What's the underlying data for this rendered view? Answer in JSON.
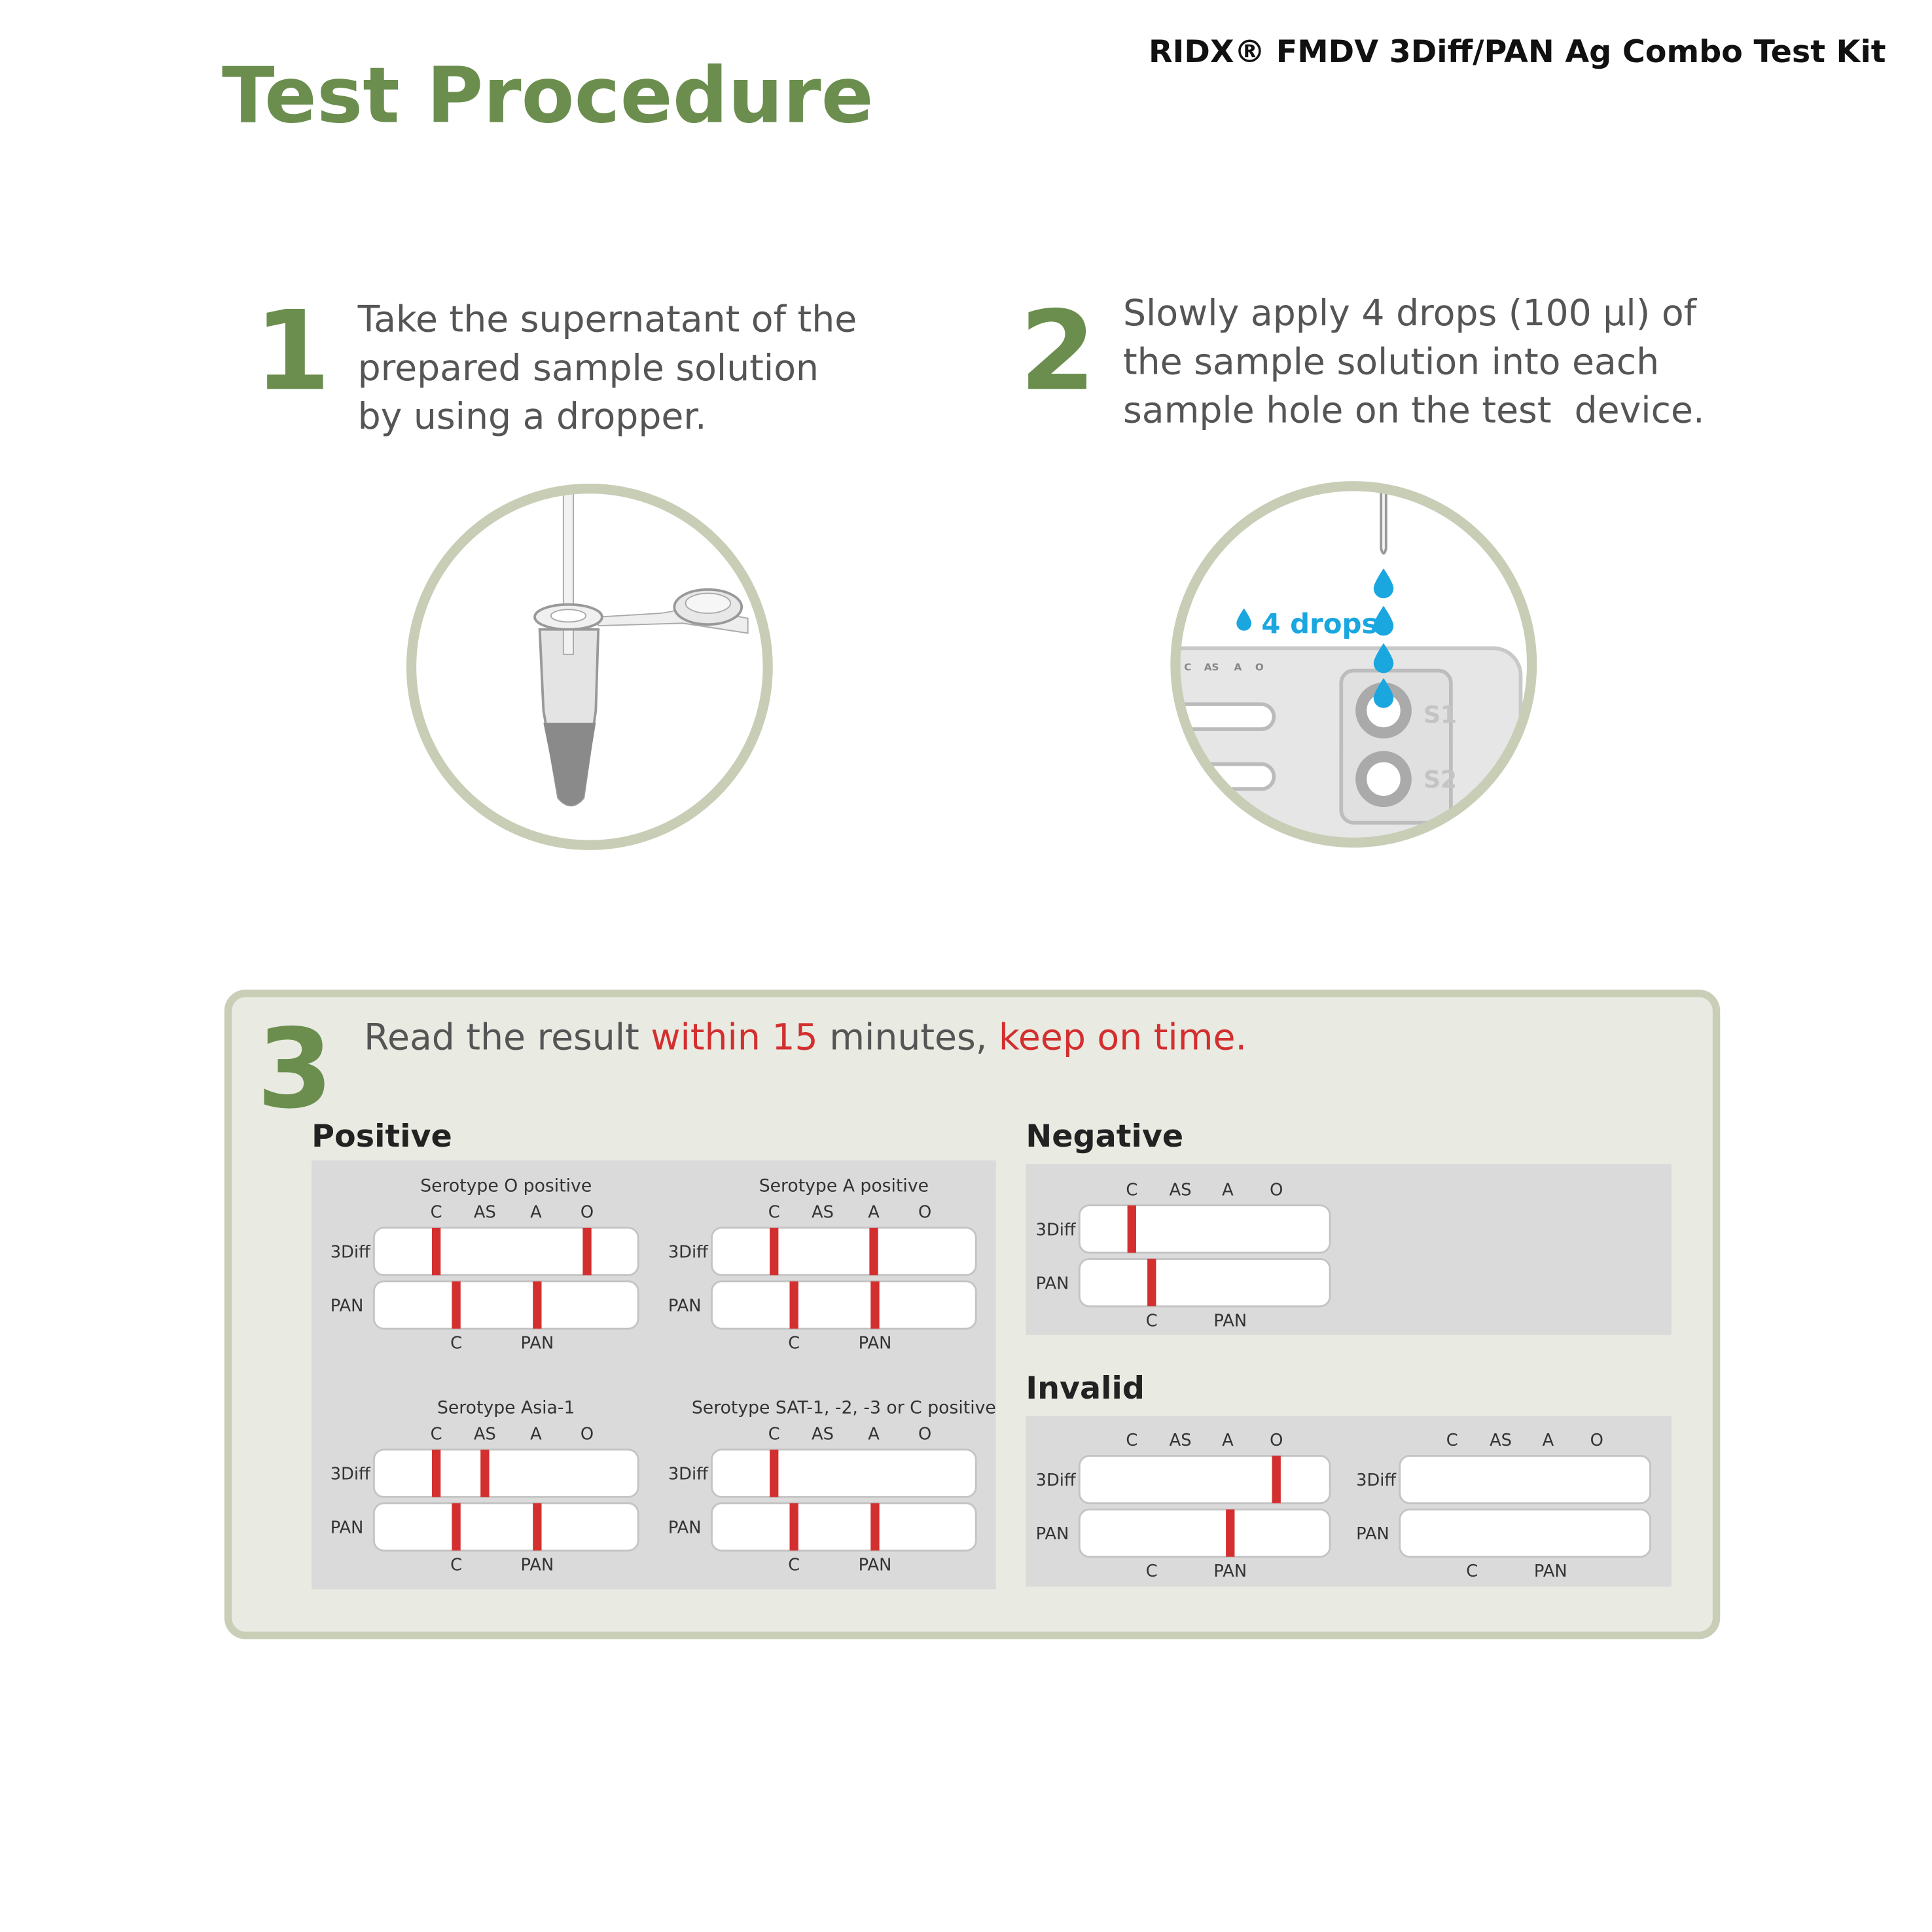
{
  "header": {
    "kit_name": "RIDX® FMDV 3Diff/PAN Ag Combo Test Kit",
    "title": "Test Procedure"
  },
  "steps": [
    {
      "number": "1",
      "text": [
        "Take the supernatant of the",
        "prepared sample solution",
        "by using a dropper."
      ]
    },
    {
      "number": "2",
      "text": [
        "Slowly apply 4 drops (100 µl) of",
        "the sample solution into each",
        "sample hole on the test  device."
      ],
      "illustration": {
        "drops_label": "4 drops",
        "holes": [
          "S1",
          "S2"
        ],
        "strip_labels": [
          "C",
          "AS",
          "A",
          "O"
        ]
      }
    }
  ],
  "step3": {
    "number": "3",
    "instruction": [
      {
        "text": "Read the result ",
        "color": "#555555"
      },
      {
        "text": "within 15",
        "color": "#d32f2f"
      },
      {
        "text": " minutes, ",
        "color": "#555555"
      },
      {
        "text": "keep on time.",
        "color": "#d32f2f"
      }
    ],
    "band_color": "#d32f2f",
    "results": [
      {
        "heading": "Positive",
        "panels": [
          {
            "title": "Serotype O positive",
            "top_labels": [
              "C",
              "AS",
              "A",
              "O"
            ],
            "rows": [
              {
                "label": "3Diff",
                "bands": [
                  "C",
                  "O"
                ]
              },
              {
                "label": "PAN",
                "bands": [
                  "C",
                  "PAN"
                ]
              }
            ],
            "bottom_labels": [
              "C",
              "PAN"
            ]
          },
          {
            "title": "Serotype A positive",
            "top_labels": [
              "C",
              "AS",
              "A",
              "O"
            ],
            "rows": [
              {
                "label": "3Diff",
                "bands": [
                  "C",
                  "A"
                ]
              },
              {
                "label": "PAN",
                "bands": [
                  "C",
                  "PAN"
                ]
              }
            ],
            "bottom_labels": [
              "C",
              "PAN"
            ]
          },
          {
            "title": "Serotype Asia-1",
            "top_labels": [
              "C",
              "AS",
              "A",
              "O"
            ],
            "rows": [
              {
                "label": "3Diff",
                "bands": [
                  "C",
                  "AS"
                ]
              },
              {
                "label": "PAN",
                "bands": [
                  "C",
                  "PAN"
                ]
              }
            ],
            "bottom_labels": [
              "C",
              "PAN"
            ]
          },
          {
            "title": "Serotype SAT-1, -2, -3 or C positive",
            "top_labels": [
              "C",
              "AS",
              "A",
              "O"
            ],
            "rows": [
              {
                "label": "3Diff",
                "bands": [
                  "C"
                ]
              },
              {
                "label": "PAN",
                "bands": [
                  "C",
                  "PAN"
                ]
              }
            ],
            "bottom_labels": [
              "C",
              "PAN"
            ]
          }
        ]
      },
      {
        "heading": "Negative",
        "panels": [
          {
            "top_labels": [
              "C",
              "AS",
              "A",
              "O"
            ],
            "rows": [
              {
                "label": "3Diff",
                "bands": [
                  "C"
                ]
              },
              {
                "label": "PAN",
                "bands": [
                  "C"
                ]
              }
            ],
            "bottom_labels": [
              "C",
              "PAN"
            ]
          }
        ]
      },
      {
        "heading": "Invalid",
        "panels": [
          {
            "top_labels": [
              "C",
              "AS",
              "A",
              "O"
            ],
            "rows": [
              {
                "label": "3Diff",
                "bands": [
                  "O"
                ]
              },
              {
                "label": "PAN",
                "bands": [
                  "PAN"
                ]
              }
            ],
            "bottom_labels": [
              "C",
              "PAN"
            ]
          },
          {
            "top_labels": [
              "C",
              "AS",
              "A",
              "O"
            ],
            "rows": [
              {
                "label": "3Diff",
                "bands": []
              },
              {
                "label": "PAN",
                "bands": []
              }
            ],
            "bottom_labels": [
              "C",
              "PAN"
            ]
          }
        ]
      }
    ]
  }
}
